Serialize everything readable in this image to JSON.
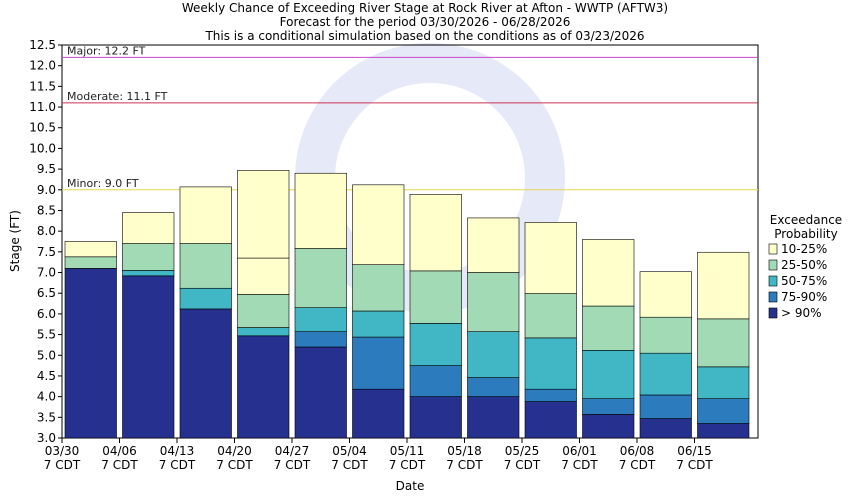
{
  "chart_data": {
    "type": "bar",
    "title": [
      "Weekly Chance of Exceeding River Stage at Rock River at Afton - WWTP (AFTW3)",
      "Forecast for the period 03/30/2026 - 06/28/2026",
      "This is a conditional simulation based on the conditions as of 03/23/2026"
    ],
    "xlabel": "Date",
    "ylabel": "Stage (FT)",
    "ylim": [
      3.0,
      12.5
    ],
    "yticks": [
      "3.0",
      "3.5",
      "4.0",
      "4.5",
      "5.0",
      "5.5",
      "6.0",
      "6.5",
      "7.0",
      "7.5",
      "8.0",
      "8.5",
      "9.0",
      "9.5",
      "10.0",
      "10.5",
      "11.0",
      "11.5",
      "12.0",
      "12.5"
    ],
    "x_tick_dates": [
      "03/30",
      "04/06",
      "04/13",
      "04/20",
      "04/27",
      "05/04",
      "05/11",
      "05/18",
      "05/25",
      "06/01",
      "06/08",
      "06/15"
    ],
    "x_tick_sub": "7 CDT",
    "flood_levels": [
      {
        "label": "Major: 12.2 FT",
        "value": 12.2,
        "color": "#cc44cc"
      },
      {
        "label": "Moderate: 11.1 FT",
        "value": 11.1,
        "color": "#cc3355"
      },
      {
        "label": "Minor: 9.0 FT",
        "value": 9.0,
        "color": "#e6d655"
      }
    ],
    "legend": {
      "title": [
        "Exceedance",
        "Probability"
      ],
      "placement": "right",
      "entries": [
        "10-25%",
        "25-50%",
        "50-75%",
        "75-90%",
        "> 90%"
      ]
    },
    "series_colors": {
      "gt90": "#25308f",
      "p75_90": "#2b7bbd",
      "p50_75": "#41b6c4",
      "p25_50": "#a1dab4",
      "p10_25": "#ffffcc"
    },
    "weeks": [
      {
        "gt90": 7.1,
        "p75_90": 7.1,
        "p50_75": 7.1,
        "p25_50": 7.38,
        "p10_25": 7.75
      },
      {
        "gt90": 6.92,
        "p75_90": 6.92,
        "p50_75": 7.05,
        "p25_50": 7.7,
        "p10_25": 8.45
      },
      {
        "gt90": 6.12,
        "p75_90": 6.12,
        "p50_75": 6.62,
        "p25_50": 7.7,
        "p10_25": 9.07
      },
      {
        "gt90": 5.47,
        "p75_90": 5.47,
        "p50_75": 5.67,
        "p25_50": 6.47,
        "p10_25": 7.35,
        "p_top": 9.47
      },
      {
        "gt90": 5.2,
        "p75_90": 5.57,
        "p50_75": 6.15,
        "p25_50": 7.58,
        "p10_25": 9.4
      },
      {
        "gt90": 4.18,
        "p75_90": 5.44,
        "p50_75": 6.07,
        "p25_50": 7.19,
        "p10_25": 9.12
      },
      {
        "gt90": 4.0,
        "p75_90": 4.75,
        "p50_75": 5.77,
        "p25_50": 7.04,
        "p10_25": 8.89
      },
      {
        "gt90": 4.0,
        "p75_90": 4.46,
        "p50_75": 5.57,
        "p25_50": 7.0,
        "p10_25": 8.32
      },
      {
        "gt90": 3.88,
        "p75_90": 4.18,
        "p50_75": 5.42,
        "p25_50": 6.49,
        "p10_25": 8.21
      },
      {
        "gt90": 3.57,
        "p75_90": 3.95,
        "p50_75": 5.12,
        "p25_50": 6.19,
        "p10_25": 7.8
      },
      {
        "gt90": 3.47,
        "p75_90": 4.04,
        "p50_75": 5.05,
        "p25_50": 5.92,
        "p10_25": 7.02
      },
      {
        "gt90": 3.35,
        "p75_90": 3.95,
        "p50_75": 4.72,
        "p25_50": 5.88,
        "p10_25": 7.49
      }
    ]
  }
}
